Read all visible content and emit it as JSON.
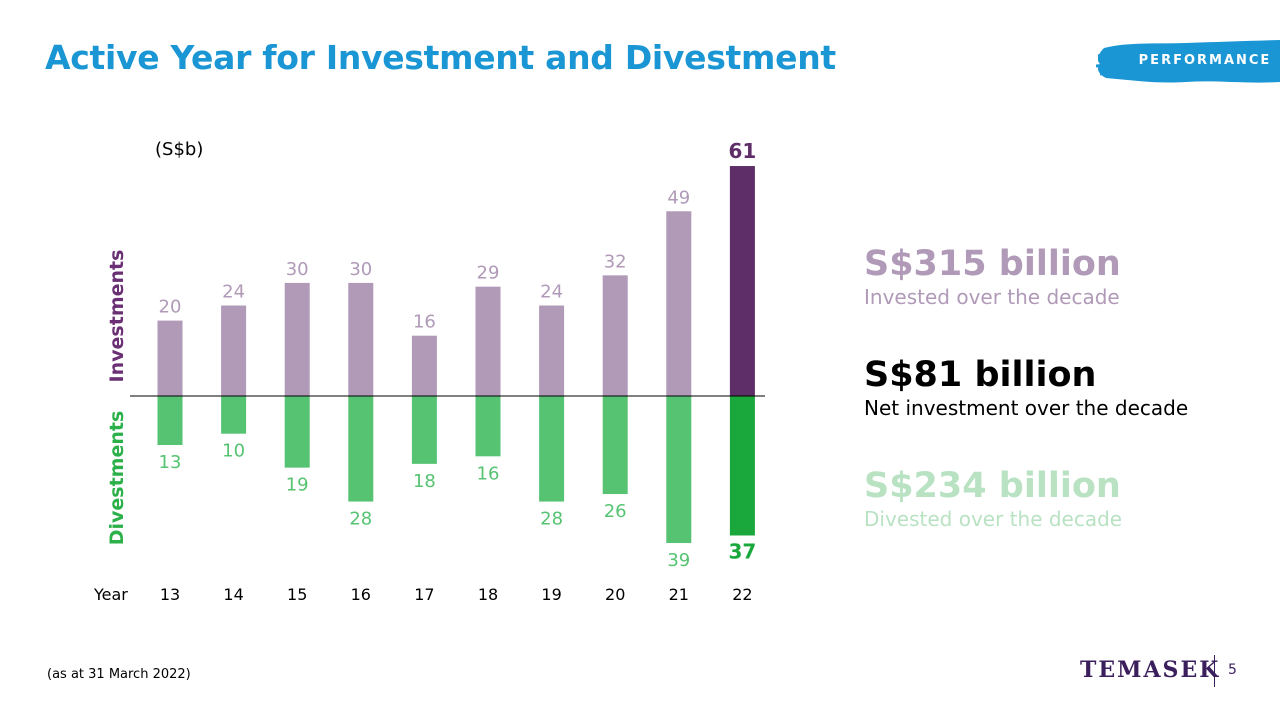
{
  "page": {
    "title": "Active Year for Investment and Divestment",
    "badge": "PERFORMANCE",
    "footnote": "(as at 31 March 2022)",
    "logo": "TEMASEK",
    "page_number": "5"
  },
  "summary": [
    {
      "big": "S$315 billion",
      "sub": "Invested over the decade",
      "color": "#b09ab8"
    },
    {
      "big": "S$81 billion",
      "sub": "Net investment over the decade",
      "color": "#000000"
    },
    {
      "big": "S$234 billion",
      "sub": "Divested over the decade",
      "color": "#b9e2c3"
    }
  ],
  "colors": {
    "title": "#1a96d4",
    "badge": "#1a96d4",
    "invest": "#b09ab8",
    "invest_highlight": "#5e2e68",
    "divest": "#56c372",
    "divest_highlight": "#1aa83c",
    "invest_label": "#b09ab8",
    "invest_label_highlight": "#5e2e68",
    "divest_label": "#56c372",
    "divest_label_highlight": "#1aa83c",
    "axis_label_invest": "#6b2f74",
    "axis_label_divest": "#2bb04a"
  },
  "chart_data": {
    "type": "bar",
    "unit_label": "(S$b)",
    "x_title": "Year",
    "categories": [
      "13",
      "14",
      "15",
      "16",
      "17",
      "18",
      "19",
      "20",
      "21",
      "22"
    ],
    "series": [
      {
        "name": "Investments",
        "values": [
          20,
          24,
          30,
          30,
          16,
          29,
          24,
          32,
          49,
          61
        ]
      },
      {
        "name": "Divestments",
        "values": [
          13,
          10,
          19,
          28,
          18,
          16,
          28,
          26,
          39,
          37
        ]
      }
    ],
    "highlight_category": "22",
    "grid": false
  }
}
